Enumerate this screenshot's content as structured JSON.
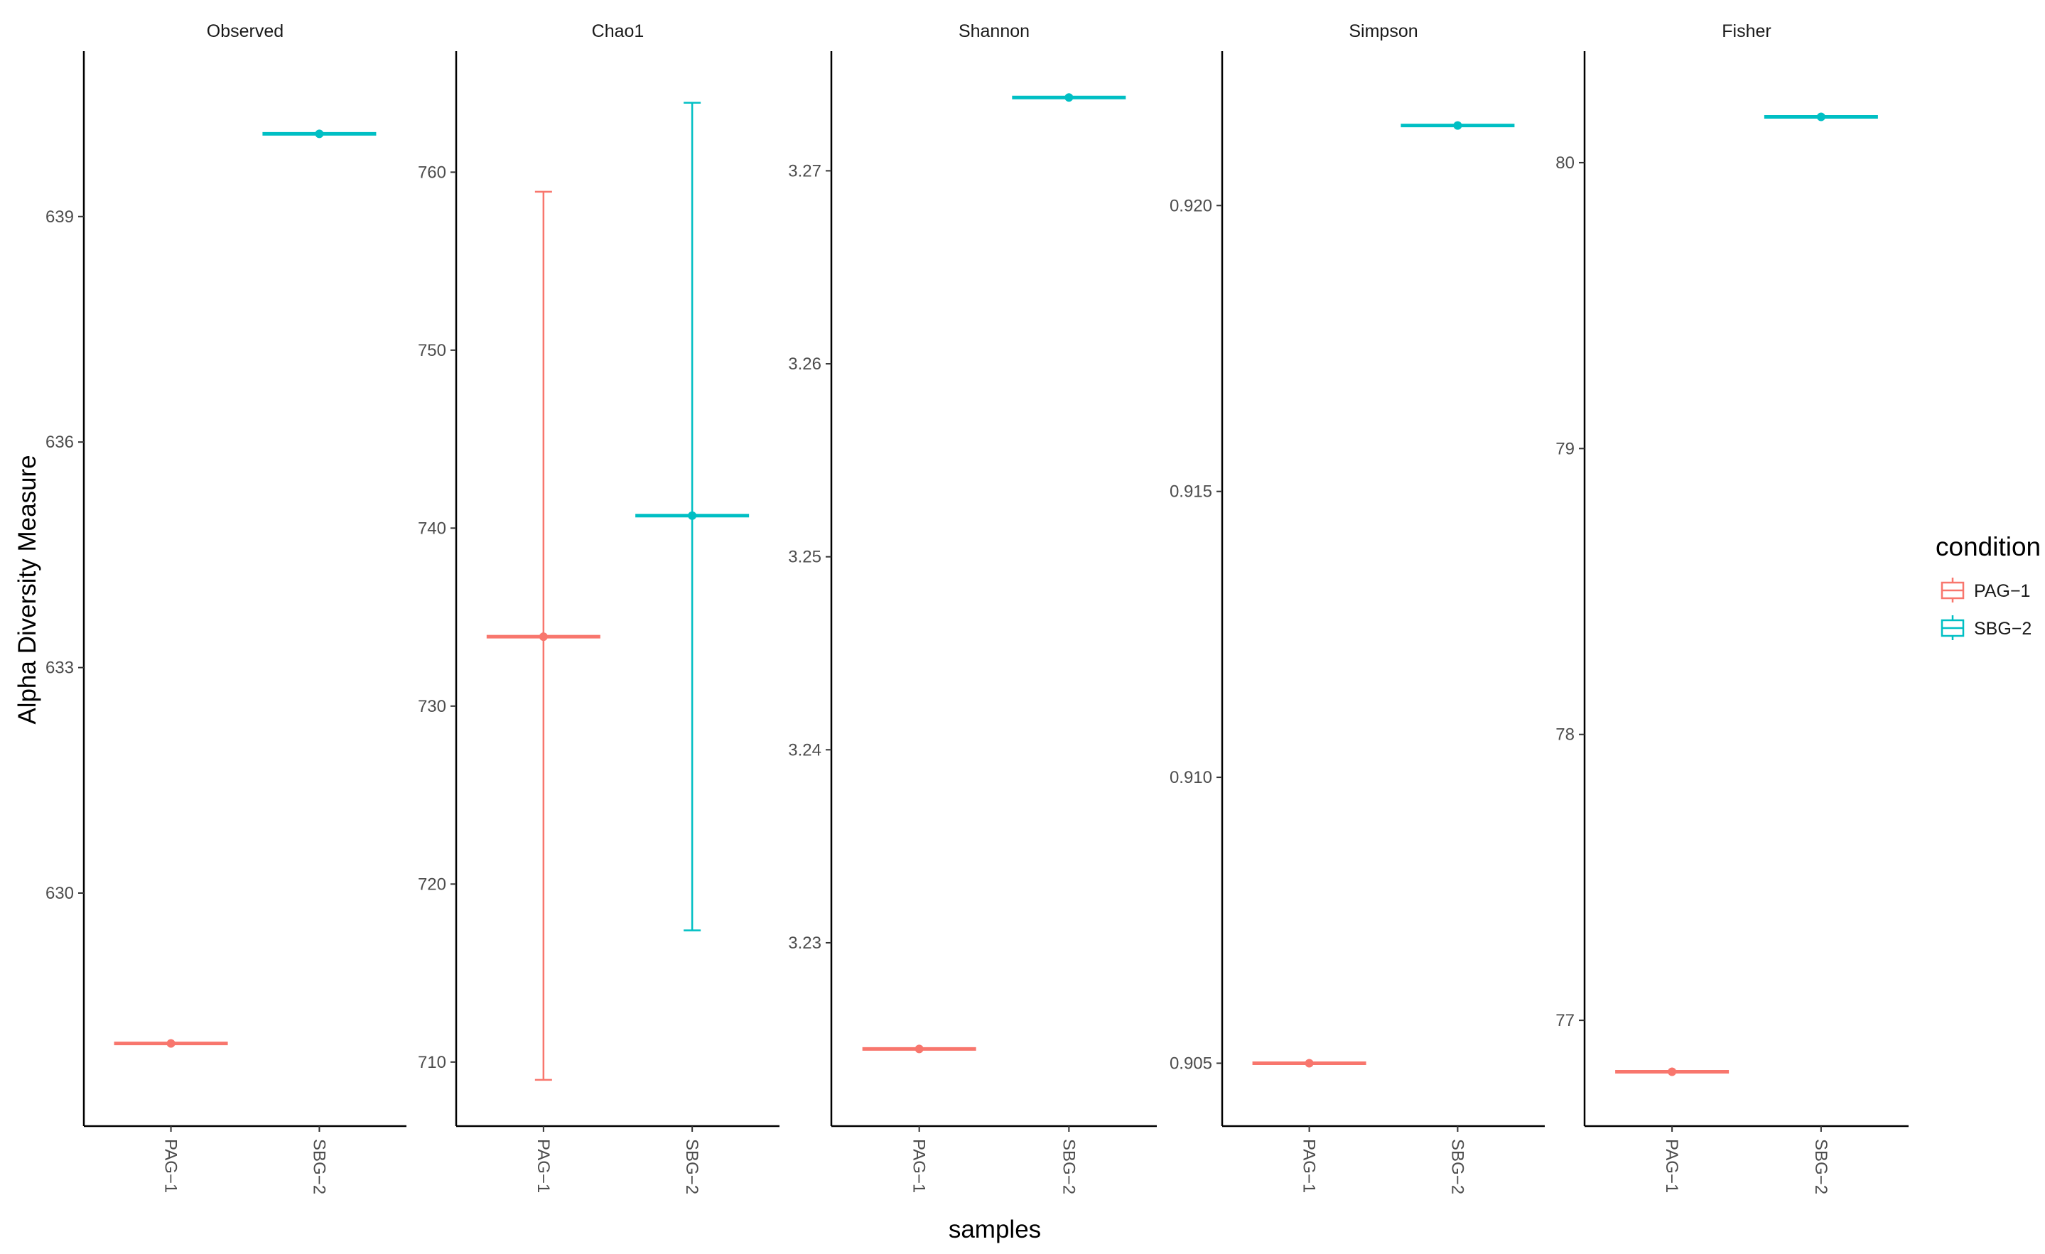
{
  "chart_data": {
    "type": "boxplot-facets",
    "ylabel": "Alpha Diversity Measure",
    "xlabel": "samples",
    "legend": {
      "title": "condition",
      "placement": "right",
      "entries": [
        {
          "name": "PAG−1",
          "color": "#F8766D"
        },
        {
          "name": "SBG−2",
          "color": "#00BFC4"
        }
      ]
    },
    "categories": [
      "PAG−1",
      "SBG−2"
    ],
    "colors": {
      "PAG−1": "#F8766D",
      "SBG−2": "#00BFC4"
    },
    "panels": [
      {
        "title": "Observed",
        "ylim": [
          626.9,
          641.2
        ],
        "ticks": [
          630,
          633,
          636,
          639
        ],
        "tick_labels": [
          "630",
          "633",
          "636",
          "639"
        ],
        "series": [
          {
            "name": "PAG−1",
            "value": 628
          },
          {
            "name": "SBG−2",
            "value": 640.1
          }
        ]
      },
      {
        "title": "Chao1",
        "ylim": [
          706.4,
          766.8
        ],
        "ticks": [
          710,
          720,
          730,
          740,
          750,
          760
        ],
        "tick_labels": [
          "710",
          "720",
          "730",
          "740",
          "750",
          "760"
        ],
        "series": [
          {
            "name": "PAG−1",
            "value": 733.9,
            "lower": 709.0,
            "upper": 758.9
          },
          {
            "name": "SBG−2",
            "value": 740.7,
            "lower": 717.4,
            "upper": 763.9
          }
        ]
      },
      {
        "title": "Shannon",
        "ylim": [
          3.2205,
          3.2762
        ],
        "ticks": [
          3.23,
          3.24,
          3.25,
          3.26,
          3.27
        ],
        "tick_labels": [
          "3.23",
          "3.24",
          "3.25",
          "3.26",
          "3.27"
        ],
        "series": [
          {
            "name": "PAG−1",
            "value": 3.2245
          },
          {
            "name": "SBG−2",
            "value": 3.2738
          }
        ]
      },
      {
        "title": "Simpson",
        "ylim": [
          0.9039,
          0.9227
        ],
        "ticks": [
          0.905,
          0.91,
          0.915,
          0.92
        ],
        "tick_labels": [
          "0.905",
          "0.910",
          "0.915",
          "0.920"
        ],
        "series": [
          {
            "name": "PAG−1",
            "value": 0.905
          },
          {
            "name": "SBG−2",
            "value": 0.9214
          }
        ]
      },
      {
        "title": "Fisher",
        "ylim": [
          76.63,
          80.39
        ],
        "ticks": [
          77,
          78,
          79,
          80
        ],
        "tick_labels": [
          "77",
          "78",
          "79",
          "80"
        ],
        "series": [
          {
            "name": "PAG−1",
            "value": 76.82
          },
          {
            "name": "SBG−2",
            "value": 80.16
          }
        ]
      }
    ]
  }
}
